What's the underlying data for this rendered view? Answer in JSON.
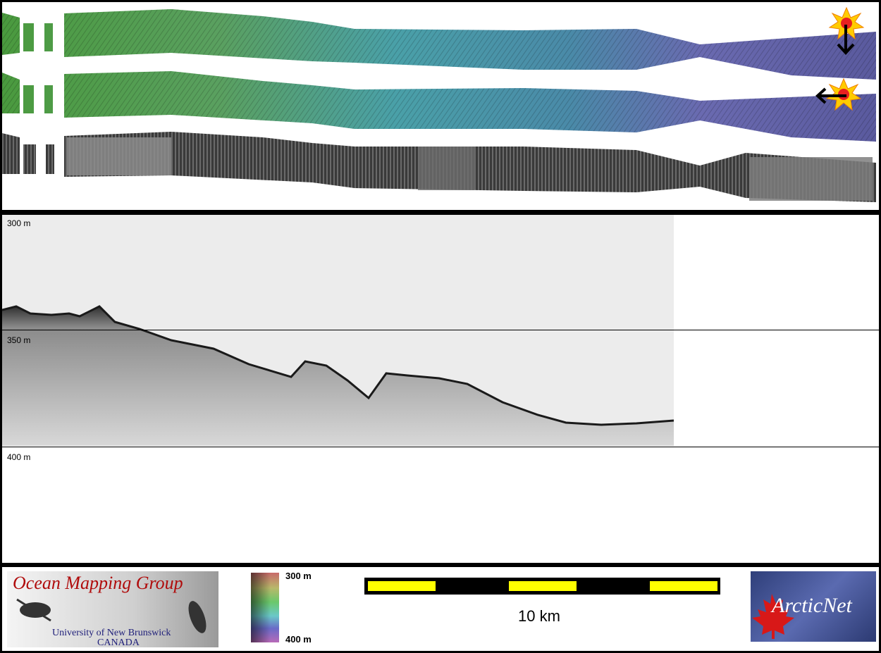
{
  "echogram": {
    "depth_labels": [
      "300 m",
      "350 m",
      "400 m"
    ]
  },
  "legend": {
    "logo_title": "Ocean Mapping Group",
    "logo_subtitle_1": "University of New Brunswick",
    "logo_subtitle_2": "CANADA",
    "colorbar_top": "300 m",
    "colorbar_bottom": "400 m",
    "scale_label": "10 km",
    "partner_logo_text": "ArcticNet"
  },
  "colors": {
    "background": "#000000",
    "panel": "#ffffff",
    "scalebar_yellow": "#ffff00",
    "logo_red": "#b00c0c",
    "logo_blue": "#20207a",
    "sun_fill": "#ffcc00",
    "sun_core": "#e82020"
  },
  "icons": [
    "sun-icon",
    "arrow-down-icon",
    "arrow-left-icon",
    "maple-leaf-icon"
  ]
}
